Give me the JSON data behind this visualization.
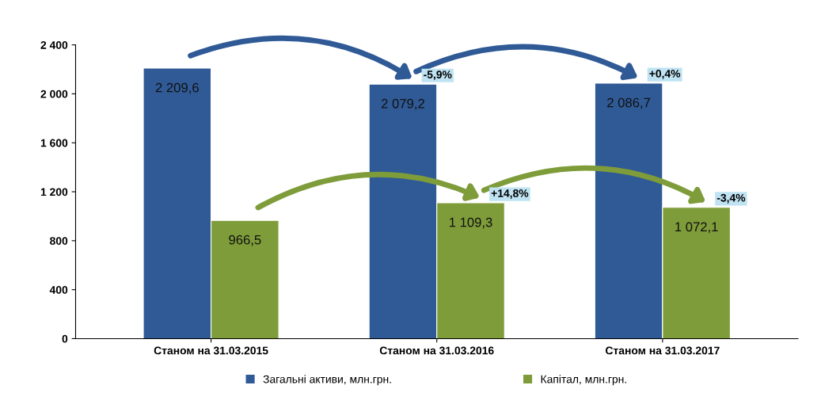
{
  "chart_data": {
    "type": "bar",
    "categories": [
      "Станом на 31.03.2015",
      "Станом на 31.03.2016",
      "Станом на 31.03.2017"
    ],
    "series": [
      {
        "name": "Загальні активи, млн.грн.",
        "color": "#2f5a96",
        "values": [
          2209.6,
          2079.2,
          2086.7
        ],
        "value_labels": [
          "2 209,6",
          "2 079,2",
          "2 086,7"
        ]
      },
      {
        "name": "Капітал, млн.грн.",
        "color": "#7f9c3a",
        "values": [
          966.5,
          1109.3,
          1072.1
        ],
        "value_labels": [
          "966,5",
          "1 109,3",
          "1 072,1"
        ]
      }
    ],
    "ylim": [
      0,
      2400
    ],
    "yticks": [
      0,
      400,
      800,
      {
        "value": 1200,
        "label": "1 200"
      },
      {
        "value": 1600,
        "label": "1 600"
      },
      {
        "value": 2000,
        "label": "2 000"
      },
      {
        "value": 2400,
        "label": "2 400"
      }
    ],
    "annotations": [
      "-5,9%",
      "+0,4%",
      "+14,8%",
      "-3,4%"
    ],
    "grid": false,
    "legend": "bottom"
  }
}
